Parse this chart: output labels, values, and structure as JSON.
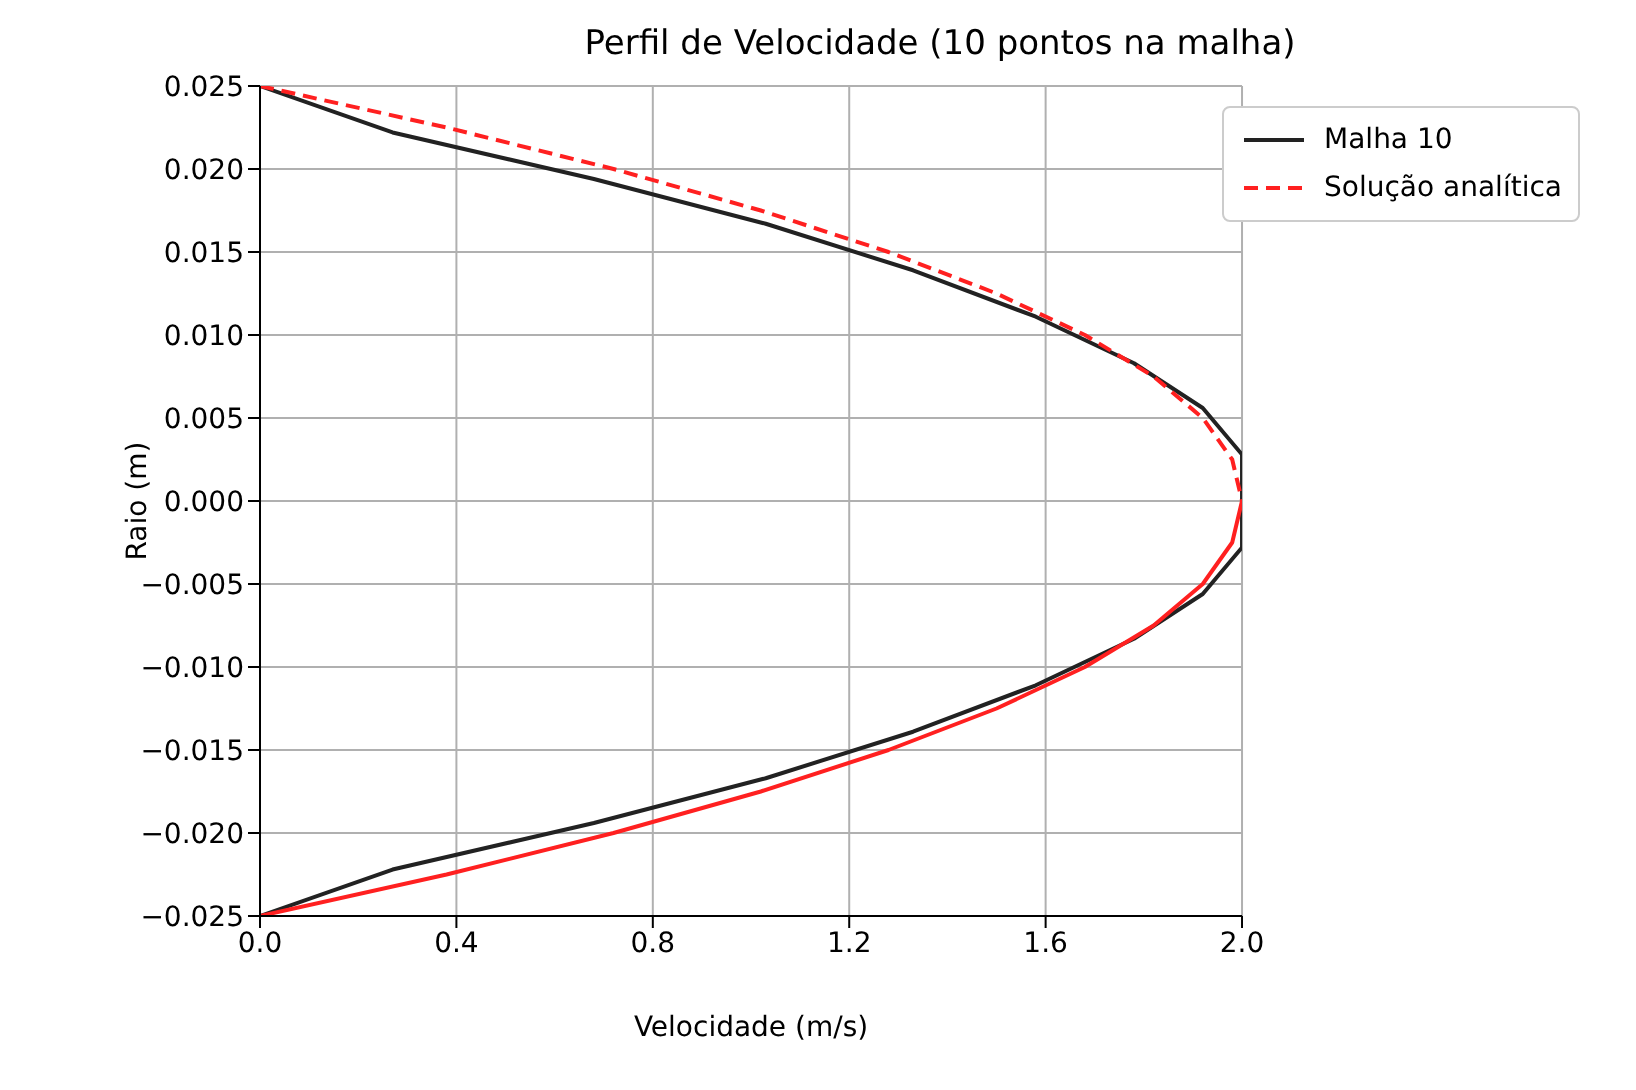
{
  "chart_data": {
    "type": "line",
    "title": "Perfil de Velocidade (10 pontos na malha)",
    "xlabel": "Velocidade (m/s)",
    "ylabel": "Raio (m)",
    "series": [
      {
        "name": "Malha 10",
        "color": "#222222",
        "x": [
          0,
          0.27,
          0.68,
          1.03,
          1.33,
          1.58,
          1.78,
          1.92,
          2.0,
          2.0,
          1.92,
          1.78,
          1.58,
          1.33,
          1.03,
          0.68,
          0.27,
          0
        ],
        "values": [
          0.025,
          0.0222,
          0.0194,
          0.0167,
          0.0139,
          0.0111,
          0.0083,
          0.0056,
          0.0028,
          -0.0028,
          -0.0056,
          -0.0083,
          -0.0111,
          -0.0139,
          -0.0167,
          -0.0194,
          -0.0222,
          -0.025
        ]
      },
      {
        "name": "Solução analítica",
        "color": "#ff2020",
        "line_style": "dashed",
        "x": [
          0,
          0.38,
          0.72,
          1.02,
          1.28,
          1.5,
          1.68,
          1.82,
          1.92,
          1.98,
          2.0
        ],
        "values": [
          0.025,
          0.0225,
          0.02,
          0.0175,
          0.015,
          0.0125,
          0.01,
          0.0075,
          0.005,
          0.0025,
          0
        ]
      },
      {
        "color": "#ff2020",
        "x": [
          2.0,
          1.98,
          1.92,
          1.82,
          1.68,
          1.5,
          1.28,
          1.02,
          0.72,
          0.38,
          0
        ],
        "values": [
          0,
          -0.0025,
          -0.005,
          -0.0075,
          -0.01,
          -0.0125,
          -0.015,
          -0.0175,
          -0.02,
          -0.0225,
          -0.025
        ]
      }
    ],
    "xlim": [
      0,
      2.0
    ],
    "xticks": [
      {
        "value": 0,
        "label": "0.0"
      },
      0.4,
      0.8,
      1.2,
      1.6,
      {
        "value": 2.0,
        "label": "2.0"
      }
    ],
    "ylim": [
      -0.025,
      0.025
    ],
    "yticks": [
      {
        "value": -0.025,
        "label": "−0.025"
      },
      {
        "value": -0.02,
        "label": "−0.020"
      },
      {
        "value": -0.015,
        "label": "−0.015"
      },
      {
        "value": -0.01,
        "label": "−0.010"
      },
      {
        "value": -0.005,
        "label": "−0.005"
      },
      {
        "value": 0,
        "label": "0.000"
      },
      {
        "value": 0.005,
        "label": "0.005"
      },
      {
        "value": 0.01,
        "label": "0.010"
      },
      {
        "value": 0.015,
        "label": "0.015"
      },
      {
        "value": 0.02,
        "label": "0.020"
      },
      {
        "value": 0.025,
        "label": "0.025"
      }
    ],
    "grid": true,
    "legend": "top right",
    "marker": "none",
    "line_style": "solid"
  }
}
